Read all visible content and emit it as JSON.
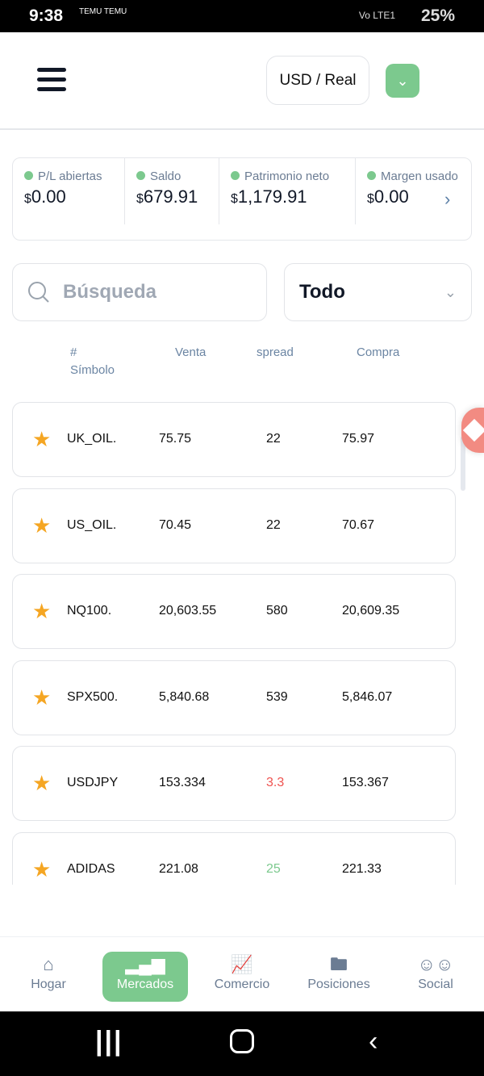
{
  "status_bar": {
    "time": "9:38",
    "notif": "TEMU TEMU",
    "network": "Vo LTE1",
    "battery": "25%"
  },
  "header": {
    "account": "USD / Real"
  },
  "summary": [
    {
      "label": "P/L abiertas",
      "currency": "$",
      "value": "0.00"
    },
    {
      "label": "Saldo",
      "currency": "$",
      "value": "679.91"
    },
    {
      "label": "Patrimonio neto",
      "currency": "$",
      "value": "1,179.91"
    },
    {
      "label": "Margen usado",
      "currency": "$",
      "value": "0.00"
    }
  ],
  "search": {
    "placeholder": "Búsqueda"
  },
  "filter": {
    "value": "Todo"
  },
  "columns": {
    "symbol_hash": "#",
    "symbol": "Símbolo",
    "sell": "Venta",
    "spread": "spread",
    "buy": "Compra"
  },
  "rows": [
    {
      "symbol": "UK_OIL.",
      "sell": "75.75",
      "spread": "22",
      "buy": "75.97",
      "spread_color": "#111111"
    },
    {
      "symbol": "US_OIL.",
      "sell": "70.45",
      "spread": "22",
      "buy": "70.67",
      "spread_color": "#111111"
    },
    {
      "symbol": "NQ100.",
      "sell": "20,603.55",
      "spread": "580",
      "buy": "20,609.35",
      "spread_color": "#111111"
    },
    {
      "symbol": "SPX500.",
      "sell": "5,840.68",
      "spread": "539",
      "buy": "5,846.07",
      "spread_color": "#111111"
    },
    {
      "symbol": "USDJPY",
      "sell": "153.334",
      "spread": "3.3",
      "buy": "153.367",
      "spread_color": "#ef5350"
    },
    {
      "symbol": "ADIDAS",
      "sell": "221.08",
      "spread": "25",
      "buy": "221.33",
      "spread_color": "#7cc98e"
    }
  ],
  "nav": [
    {
      "label": "Hogar",
      "icon": "home-icon"
    },
    {
      "label": "Mercados",
      "icon": "bar-chart-icon",
      "active": true
    },
    {
      "label": "Comercio",
      "icon": "trade-chart-icon"
    },
    {
      "label": "Posiciones",
      "icon": "folder-icon"
    },
    {
      "label": "Social",
      "icon": "users-icon"
    }
  ],
  "colors": {
    "accent": "#7cc98e",
    "star": "#f5a623"
  }
}
